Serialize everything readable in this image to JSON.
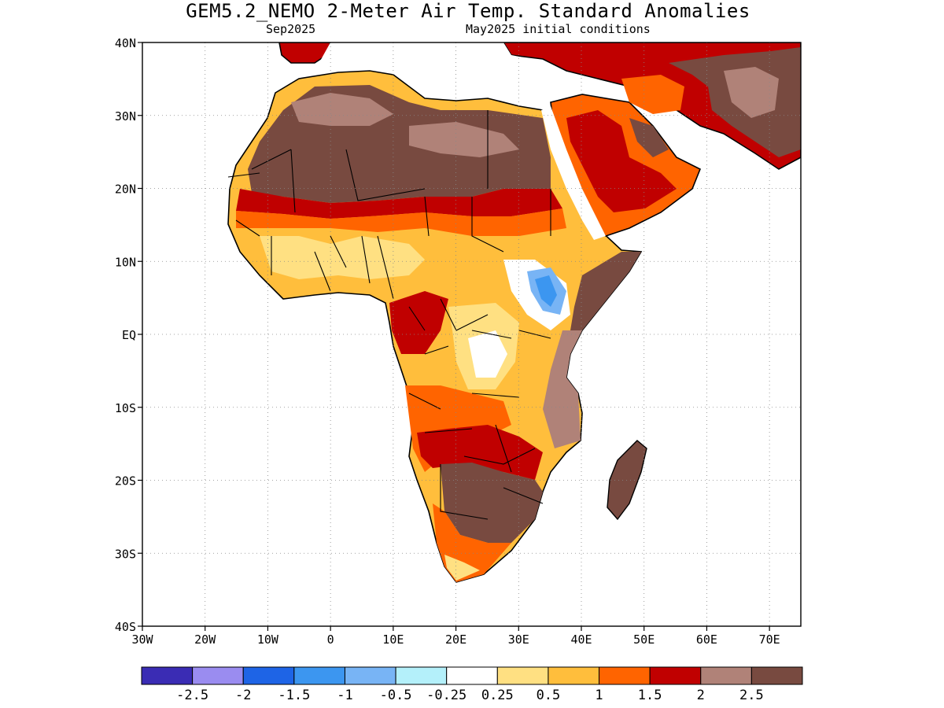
{
  "header": {
    "title": "GEM5.2_NEMO 2-Meter Air Temp. Standard Anomalies",
    "subtitle_left": "Sep2025",
    "subtitle_right": "May2025 initial conditions"
  },
  "map": {
    "lon_range": [
      -30,
      75
    ],
    "lat_range": [
      -40,
      40
    ],
    "y_ticks": [
      {
        "lat": 40,
        "label": "40N"
      },
      {
        "lat": 30,
        "label": "30N"
      },
      {
        "lat": 20,
        "label": "20N"
      },
      {
        "lat": 10,
        "label": "10N"
      },
      {
        "lat": 0,
        "label": "EQ"
      },
      {
        "lat": -10,
        "label": "10S"
      },
      {
        "lat": -20,
        "label": "20S"
      },
      {
        "lat": -30,
        "label": "30S"
      },
      {
        "lat": -40,
        "label": "40S"
      }
    ],
    "x_ticks": [
      {
        "lon": -30,
        "label": "30W"
      },
      {
        "lon": -20,
        "label": "20W"
      },
      {
        "lon": -10,
        "label": "10W"
      },
      {
        "lon": 0,
        "label": "0"
      },
      {
        "lon": 10,
        "label": "10E"
      },
      {
        "lon": 20,
        "label": "20E"
      },
      {
        "lon": 30,
        "label": "30E"
      },
      {
        "lon": 40,
        "label": "40E"
      },
      {
        "lon": 50,
        "label": "50E"
      },
      {
        "lon": 60,
        "label": "60E"
      },
      {
        "lon": 70,
        "label": "70E"
      }
    ],
    "grid": "dotted",
    "colors": {
      "lt_-2.5": "#3a2cb4",
      "-2.5_-2": "#9a8cf0",
      "-2_-1.5": "#1e64e6",
      "-1.5_-1": "#3c96f0",
      "-1_-0.5": "#78b4f5",
      "-0.5_-0.25": "#b4f0fa",
      "-0.25_0.25": "#ffffff",
      "0.25_0.5": "#ffe082",
      "0.5_1": "#ffbe3c",
      "1_1.5": "#ff6400",
      "1.5_2": "#c00000",
      "2_2.5": "#b08278",
      "gt_2.5": "#784a40"
    }
  },
  "colorbar": {
    "colors": [
      "#3a2cb4",
      "#9a8cf0",
      "#1e64e6",
      "#3c96f0",
      "#78b4f5",
      "#b4f0fa",
      "#ffffff",
      "#ffe082",
      "#ffbe3c",
      "#ff6400",
      "#c00000",
      "#b08278",
      "#784a40"
    ],
    "labels": [
      "-2.5",
      "-2",
      "-1.5",
      "-1",
      "-0.5",
      "-0.25",
      "0.25",
      "0.5",
      "1",
      "1.5",
      "2",
      "2.5"
    ]
  }
}
